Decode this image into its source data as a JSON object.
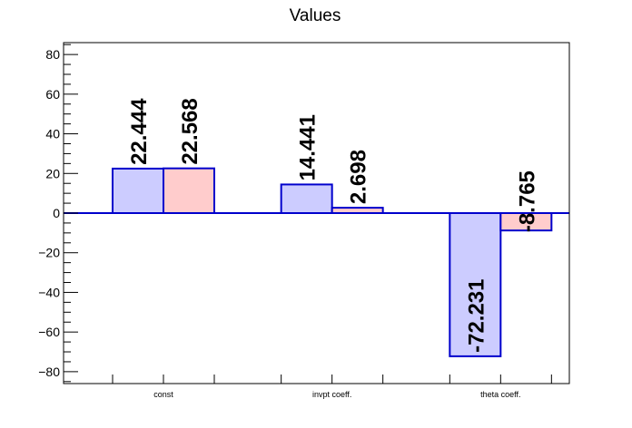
{
  "chart_data": {
    "type": "bar",
    "title": "Values",
    "categories": [
      "const",
      "invpt coeff.",
      "theta coeff."
    ],
    "series": [
      {
        "values": [
          22.444,
          14.441,
          -72.231
        ],
        "color": "#ccccff",
        "edge": "#0000cc"
      },
      {
        "values": [
          22.568,
          2.698,
          -8.765
        ],
        "color": "#ffcccc",
        "edge": "#0000cc"
      }
    ],
    "value_labels": [
      [
        "22.444",
        "14.441",
        "-72.231"
      ],
      [
        "22.568",
        "2.698",
        "-8.765"
      ]
    ],
    "ylim": [
      -86,
      86
    ],
    "yticks": [
      -80,
      -60,
      -40,
      -20,
      0,
      20,
      40,
      60,
      80
    ],
    "ytick_labels": [
      "−80",
      "−60",
      "−40",
      "−20",
      "0",
      "20",
      "40",
      "60",
      "80"
    ],
    "xlabel": "",
    "ylabel": "",
    "grid": false,
    "legend": "none"
  }
}
